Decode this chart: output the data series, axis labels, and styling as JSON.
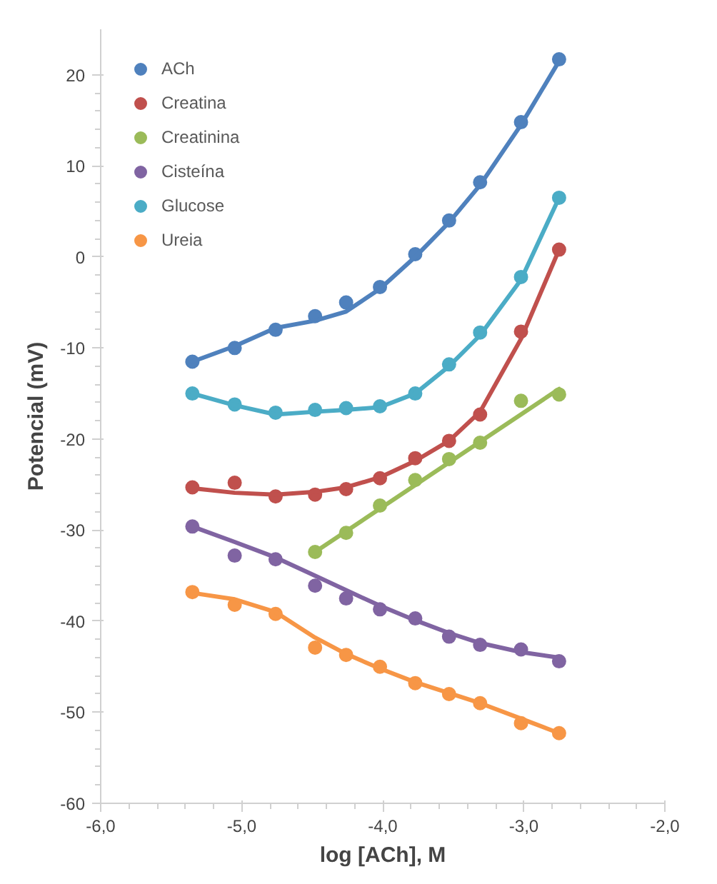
{
  "chart_data": {
    "type": "scatter",
    "xlabel": "log [ACh], M",
    "ylabel": "Potencial (mV)",
    "x": [
      -5.35,
      -5.05,
      -4.76,
      -4.48,
      -4.26,
      -4.02,
      -3.77,
      -3.53,
      -3.31,
      -3.02,
      -2.75
    ],
    "xlim": [
      -6,
      -2
    ],
    "xticks": [
      {
        "value": -6,
        "label": "-6,0"
      },
      {
        "value": -5,
        "label": "-5,0"
      },
      {
        "value": -4,
        "label": "-4,0"
      },
      {
        "value": -3,
        "label": "-3,0"
      },
      {
        "value": -2,
        "label": "-2,0"
      }
    ],
    "ylim": [
      -60,
      25
    ],
    "yticks": [
      -60,
      -50,
      -40,
      -30,
      -20,
      -10,
      0,
      10,
      20
    ],
    "grid": false,
    "legend": "top left",
    "series": [
      {
        "name": "ACh",
        "marker": "circle",
        "color": "#4f81bd",
        "values": [
          -11.5,
          -10,
          -8,
          -6.5,
          -5,
          -3.3,
          0.3,
          4,
          8.2,
          14.8,
          21.7
        ]
      },
      {
        "name": "Creatina",
        "marker": "circle",
        "color": "#c0504d",
        "values": [
          -25.3,
          -24.8,
          -26.3,
          -26.1,
          -25.5,
          -24.3,
          -22.1,
          -20.2,
          -17.3,
          -8.2,
          0.8
        ]
      },
      {
        "name": "Creatinina",
        "marker": "circle",
        "color": "#9bbb59",
        "x": [
          -4.48,
          -4.26,
          -4.02,
          -3.77,
          -3.53,
          -3.31,
          -3.02,
          -2.75
        ],
        "values": [
          -32.4,
          -30.3,
          -27.3,
          -24.5,
          -22.2,
          -20.4,
          -15.8,
          -15.1
        ]
      },
      {
        "name": "Cisteína",
        "marker": "circle",
        "color": "#8064a2",
        "values": [
          -29.6,
          -32.8,
          -33.2,
          -36.1,
          -37.5,
          -38.7,
          -39.7,
          -41.7,
          -42.6,
          -43.1,
          -44.4
        ]
      },
      {
        "name": "Glucose",
        "marker": "circle",
        "color": "#4bacc6",
        "values": [
          -15,
          -16.2,
          -17.1,
          -16.8,
          -16.6,
          -16.4,
          -15,
          -11.8,
          -8.3,
          -2.2,
          6.5
        ]
      },
      {
        "name": "Ureia",
        "marker": "circle",
        "color": "#f79646",
        "values": [
          -36.8,
          -38.2,
          -39.2,
          -42.9,
          -43.7,
          -45,
          -46.8,
          -48,
          -49,
          -51.2,
          -52.3
        ]
      },
      {
        "type": "line",
        "color": "#4f81bd",
        "values": [
          -11.5,
          -9.8,
          -7.8,
          -7,
          -6,
          -3.5,
          0,
          3.8,
          7.9,
          14.5,
          21.5
        ]
      },
      {
        "type": "line",
        "color": "#c0504d",
        "values": [
          -25.4,
          -25.9,
          -26.1,
          -25.8,
          -25.3,
          -24.2,
          -22.4,
          -20.2,
          -17,
          -9,
          0.8
        ]
      },
      {
        "type": "line",
        "color": "#9bbb59",
        "x": [
          -4.48,
          -2.75
        ],
        "values": [
          -32.4,
          -14.5
        ]
      },
      {
        "type": "line",
        "color": "#8064a2",
        "values": [
          -29.6,
          -31.3,
          -33,
          -35,
          -36.6,
          -38.3,
          -39.9,
          -41.3,
          -42.4,
          -43.4,
          -44
        ]
      },
      {
        "type": "line",
        "color": "#4bacc6",
        "values": [
          -15,
          -16.3,
          -17.3,
          -17,
          -16.8,
          -16.5,
          -15,
          -12,
          -8.6,
          -2.5,
          6.5
        ]
      },
      {
        "type": "line",
        "color": "#f79646",
        "values": [
          -36.9,
          -37.6,
          -39,
          -41.8,
          -43.6,
          -45.2,
          -46.7,
          -47.9,
          -49,
          -50.7,
          -52.3
        ]
      }
    ]
  }
}
